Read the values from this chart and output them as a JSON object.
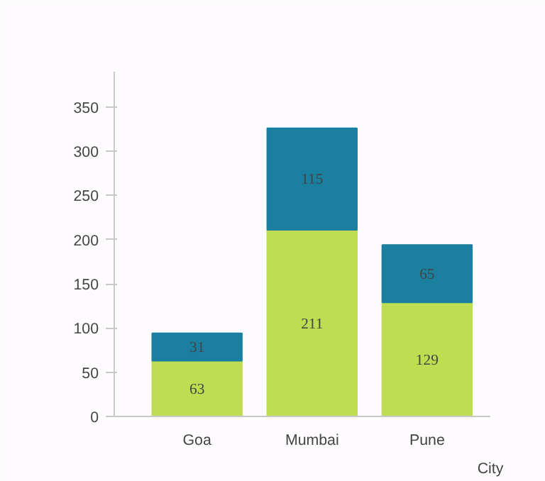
{
  "chart_data": {
    "type": "bar",
    "stacked": true,
    "xlabel": "City",
    "categories": [
      "Goa",
      "Mumbai",
      "Pune"
    ],
    "series": [
      {
        "color": "#bedd52",
        "values": [
          63,
          211,
          129
        ]
      },
      {
        "color": "#1b7fa0",
        "values": [
          31,
          115,
          65
        ]
      }
    ],
    "ylim": [
      0,
      390
    ],
    "yticks": [
      0,
      50,
      100,
      150,
      200,
      250,
      300,
      350
    ],
    "grid": false,
    "data_labels": true
  }
}
